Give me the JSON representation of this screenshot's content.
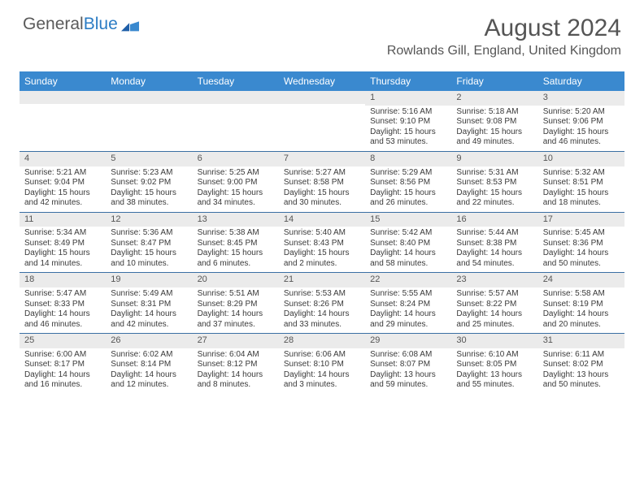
{
  "logo": {
    "word1": "General",
    "word2": "Blue"
  },
  "title": "August 2024",
  "location": "Rowlands Gill, England, United Kingdom",
  "colors": {
    "header_bar": "#3a89cf",
    "row_divider": "#3a6fa3",
    "daynum_bg": "#ebebeb",
    "text": "#3a3a3a",
    "logo_gray": "#5a5a5a",
    "logo_blue": "#2b7cc4"
  },
  "dow": [
    "Sunday",
    "Monday",
    "Tuesday",
    "Wednesday",
    "Thursday",
    "Friday",
    "Saturday"
  ],
  "weeks": [
    [
      {
        "n": "",
        "sr": "",
        "ss": "",
        "dl1": "",
        "dl2": ""
      },
      {
        "n": "",
        "sr": "",
        "ss": "",
        "dl1": "",
        "dl2": ""
      },
      {
        "n": "",
        "sr": "",
        "ss": "",
        "dl1": "",
        "dl2": ""
      },
      {
        "n": "",
        "sr": "",
        "ss": "",
        "dl1": "",
        "dl2": ""
      },
      {
        "n": "1",
        "sr": "Sunrise: 5:16 AM",
        "ss": "Sunset: 9:10 PM",
        "dl1": "Daylight: 15 hours",
        "dl2": "and 53 minutes."
      },
      {
        "n": "2",
        "sr": "Sunrise: 5:18 AM",
        "ss": "Sunset: 9:08 PM",
        "dl1": "Daylight: 15 hours",
        "dl2": "and 49 minutes."
      },
      {
        "n": "3",
        "sr": "Sunrise: 5:20 AM",
        "ss": "Sunset: 9:06 PM",
        "dl1": "Daylight: 15 hours",
        "dl2": "and 46 minutes."
      }
    ],
    [
      {
        "n": "4",
        "sr": "Sunrise: 5:21 AM",
        "ss": "Sunset: 9:04 PM",
        "dl1": "Daylight: 15 hours",
        "dl2": "and 42 minutes."
      },
      {
        "n": "5",
        "sr": "Sunrise: 5:23 AM",
        "ss": "Sunset: 9:02 PM",
        "dl1": "Daylight: 15 hours",
        "dl2": "and 38 minutes."
      },
      {
        "n": "6",
        "sr": "Sunrise: 5:25 AM",
        "ss": "Sunset: 9:00 PM",
        "dl1": "Daylight: 15 hours",
        "dl2": "and 34 minutes."
      },
      {
        "n": "7",
        "sr": "Sunrise: 5:27 AM",
        "ss": "Sunset: 8:58 PM",
        "dl1": "Daylight: 15 hours",
        "dl2": "and 30 minutes."
      },
      {
        "n": "8",
        "sr": "Sunrise: 5:29 AM",
        "ss": "Sunset: 8:56 PM",
        "dl1": "Daylight: 15 hours",
        "dl2": "and 26 minutes."
      },
      {
        "n": "9",
        "sr": "Sunrise: 5:31 AM",
        "ss": "Sunset: 8:53 PM",
        "dl1": "Daylight: 15 hours",
        "dl2": "and 22 minutes."
      },
      {
        "n": "10",
        "sr": "Sunrise: 5:32 AM",
        "ss": "Sunset: 8:51 PM",
        "dl1": "Daylight: 15 hours",
        "dl2": "and 18 minutes."
      }
    ],
    [
      {
        "n": "11",
        "sr": "Sunrise: 5:34 AM",
        "ss": "Sunset: 8:49 PM",
        "dl1": "Daylight: 15 hours",
        "dl2": "and 14 minutes."
      },
      {
        "n": "12",
        "sr": "Sunrise: 5:36 AM",
        "ss": "Sunset: 8:47 PM",
        "dl1": "Daylight: 15 hours",
        "dl2": "and 10 minutes."
      },
      {
        "n": "13",
        "sr": "Sunrise: 5:38 AM",
        "ss": "Sunset: 8:45 PM",
        "dl1": "Daylight: 15 hours",
        "dl2": "and 6 minutes."
      },
      {
        "n": "14",
        "sr": "Sunrise: 5:40 AM",
        "ss": "Sunset: 8:43 PM",
        "dl1": "Daylight: 15 hours",
        "dl2": "and 2 minutes."
      },
      {
        "n": "15",
        "sr": "Sunrise: 5:42 AM",
        "ss": "Sunset: 8:40 PM",
        "dl1": "Daylight: 14 hours",
        "dl2": "and 58 minutes."
      },
      {
        "n": "16",
        "sr": "Sunrise: 5:44 AM",
        "ss": "Sunset: 8:38 PM",
        "dl1": "Daylight: 14 hours",
        "dl2": "and 54 minutes."
      },
      {
        "n": "17",
        "sr": "Sunrise: 5:45 AM",
        "ss": "Sunset: 8:36 PM",
        "dl1": "Daylight: 14 hours",
        "dl2": "and 50 minutes."
      }
    ],
    [
      {
        "n": "18",
        "sr": "Sunrise: 5:47 AM",
        "ss": "Sunset: 8:33 PM",
        "dl1": "Daylight: 14 hours",
        "dl2": "and 46 minutes."
      },
      {
        "n": "19",
        "sr": "Sunrise: 5:49 AM",
        "ss": "Sunset: 8:31 PM",
        "dl1": "Daylight: 14 hours",
        "dl2": "and 42 minutes."
      },
      {
        "n": "20",
        "sr": "Sunrise: 5:51 AM",
        "ss": "Sunset: 8:29 PM",
        "dl1": "Daylight: 14 hours",
        "dl2": "and 37 minutes."
      },
      {
        "n": "21",
        "sr": "Sunrise: 5:53 AM",
        "ss": "Sunset: 8:26 PM",
        "dl1": "Daylight: 14 hours",
        "dl2": "and 33 minutes."
      },
      {
        "n": "22",
        "sr": "Sunrise: 5:55 AM",
        "ss": "Sunset: 8:24 PM",
        "dl1": "Daylight: 14 hours",
        "dl2": "and 29 minutes."
      },
      {
        "n": "23",
        "sr": "Sunrise: 5:57 AM",
        "ss": "Sunset: 8:22 PM",
        "dl1": "Daylight: 14 hours",
        "dl2": "and 25 minutes."
      },
      {
        "n": "24",
        "sr": "Sunrise: 5:58 AM",
        "ss": "Sunset: 8:19 PM",
        "dl1": "Daylight: 14 hours",
        "dl2": "and 20 minutes."
      }
    ],
    [
      {
        "n": "25",
        "sr": "Sunrise: 6:00 AM",
        "ss": "Sunset: 8:17 PM",
        "dl1": "Daylight: 14 hours",
        "dl2": "and 16 minutes."
      },
      {
        "n": "26",
        "sr": "Sunrise: 6:02 AM",
        "ss": "Sunset: 8:14 PM",
        "dl1": "Daylight: 14 hours",
        "dl2": "and 12 minutes."
      },
      {
        "n": "27",
        "sr": "Sunrise: 6:04 AM",
        "ss": "Sunset: 8:12 PM",
        "dl1": "Daylight: 14 hours",
        "dl2": "and 8 minutes."
      },
      {
        "n": "28",
        "sr": "Sunrise: 6:06 AM",
        "ss": "Sunset: 8:10 PM",
        "dl1": "Daylight: 14 hours",
        "dl2": "and 3 minutes."
      },
      {
        "n": "29",
        "sr": "Sunrise: 6:08 AM",
        "ss": "Sunset: 8:07 PM",
        "dl1": "Daylight: 13 hours",
        "dl2": "and 59 minutes."
      },
      {
        "n": "30",
        "sr": "Sunrise: 6:10 AM",
        "ss": "Sunset: 8:05 PM",
        "dl1": "Daylight: 13 hours",
        "dl2": "and 55 minutes."
      },
      {
        "n": "31",
        "sr": "Sunrise: 6:11 AM",
        "ss": "Sunset: 8:02 PM",
        "dl1": "Daylight: 13 hours",
        "dl2": "and 50 minutes."
      }
    ]
  ]
}
